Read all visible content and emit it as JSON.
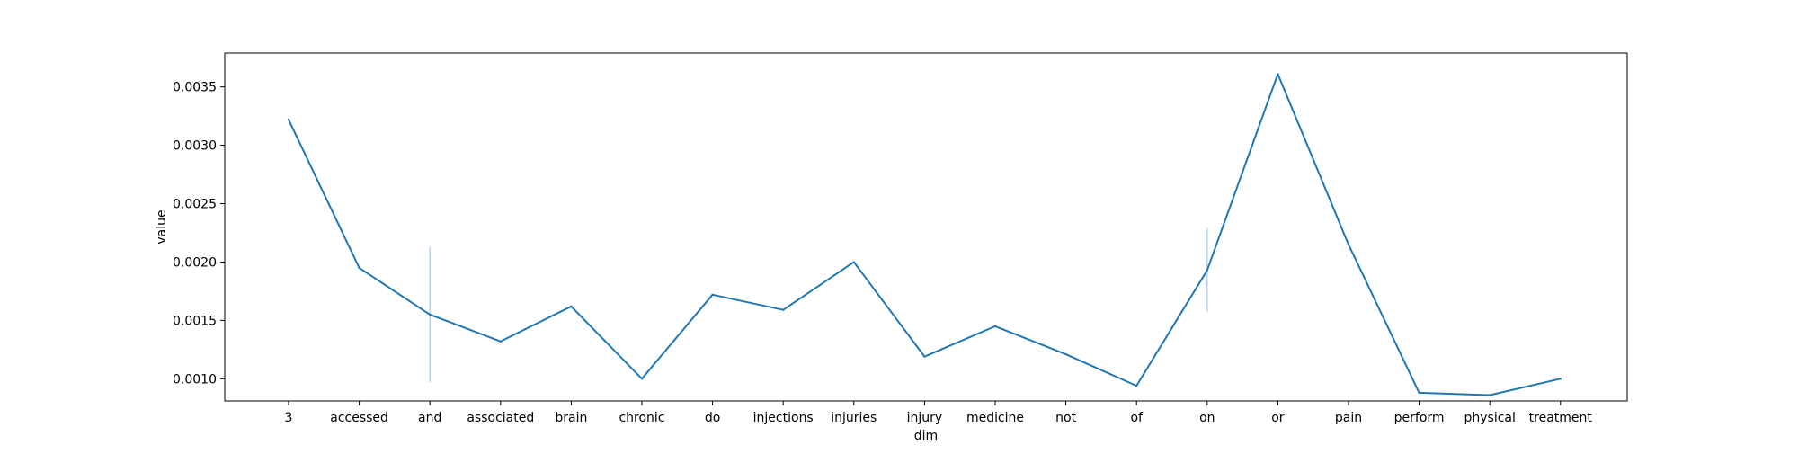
{
  "chart_data": {
    "type": "line",
    "title": "",
    "xlabel": "dim",
    "ylabel": "value",
    "categories": [
      "3",
      "accessed",
      "and",
      "associated",
      "brain",
      "chronic",
      "do",
      "injections",
      "injuries",
      "injury",
      "medicine",
      "not",
      "of",
      "on",
      "or",
      "pain",
      "perform",
      "physical",
      "treatment"
    ],
    "series": [
      {
        "values": [
          0.00322,
          0.00195,
          0.00155,
          0.00132,
          0.00162,
          0.001,
          0.00172,
          0.00159,
          0.002,
          0.00119,
          0.00145,
          0.00121,
          0.00094,
          0.00193,
          0.00361,
          0.00215,
          0.00088,
          0.00086,
          0.001
        ],
        "error_low": [
          null,
          null,
          0.00097,
          null,
          null,
          null,
          null,
          null,
          null,
          null,
          null,
          null,
          null,
          0.00157,
          null,
          null,
          null,
          null,
          null
        ],
        "error_high": [
          null,
          null,
          0.00213,
          null,
          null,
          null,
          null,
          null,
          null,
          null,
          null,
          null,
          null,
          0.00229,
          null,
          null,
          null,
          null,
          null
        ],
        "color": "#1f77b4"
      }
    ],
    "yticks": [
      0.001,
      0.0015,
      0.002,
      0.0025,
      0.003,
      0.0035
    ],
    "ytick_labels": [
      "0.0010",
      "0.0015",
      "0.0020",
      "0.0025",
      "0.0030",
      "0.0035"
    ],
    "ylim": [
      0.00081,
      0.00379
    ],
    "grid": false,
    "legend": "none",
    "error_color": "#a9c7e3"
  }
}
